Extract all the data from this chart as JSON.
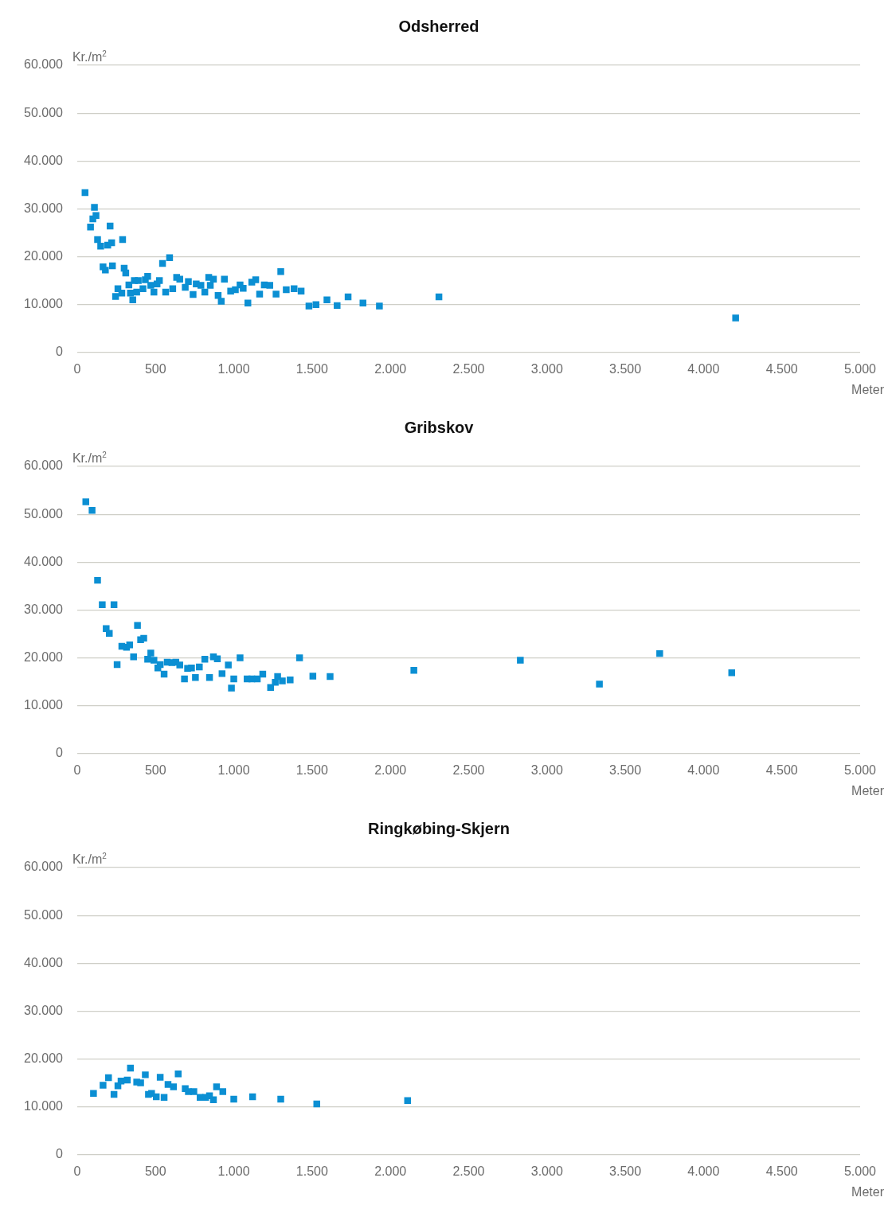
{
  "chart_data": [
    {
      "type": "scatter",
      "title": "Odsherred",
      "xlabel": "Meter",
      "ylabel": "Kr./m$^{2}$",
      "marker": "square",
      "grid": "y",
      "legend": false,
      "xlim": [
        0,
        5000
      ],
      "xticks": [
        {
          "value": 0,
          "label": "0"
        },
        {
          "value": 500,
          "label": "500"
        },
        {
          "value": 1000,
          "label": "1.000"
        },
        {
          "value": 1500,
          "label": "1.500"
        },
        {
          "value": 2000,
          "label": "2.000"
        },
        {
          "value": 2500,
          "label": "2.500"
        },
        {
          "value": 3000,
          "label": "3.000"
        },
        {
          "value": 3500,
          "label": "3.500"
        },
        {
          "value": 4000,
          "label": "4.000"
        },
        {
          "value": 4500,
          "label": "4.500"
        },
        {
          "value": 5000,
          "label": "5.000"
        }
      ],
      "ylim": [
        0,
        60000
      ],
      "yticks": [
        {
          "value": 0,
          "label": "0"
        },
        {
          "value": 10000,
          "label": "10.000"
        },
        {
          "value": 20000,
          "label": "20.000"
        },
        {
          "value": 30000,
          "label": "30.000"
        },
        {
          "value": 40000,
          "label": "40.000"
        },
        {
          "value": 50000,
          "label": "50.000"
        },
        {
          "value": 60000,
          "label": "60.000"
        }
      ],
      "series": [
        {
          "color": "#0b8fd3",
          "x": [
            50,
            85,
            100,
            110,
            120,
            130,
            150,
            165,
            180,
            195,
            210,
            220,
            225,
            245,
            260,
            285,
            290,
            300,
            310,
            330,
            340,
            355,
            365,
            380,
            390,
            420,
            435,
            450,
            470,
            490,
            510,
            525,
            545,
            565,
            590,
            610,
            635,
            655,
            690,
            710,
            740,
            760,
            790,
            815,
            840,
            850,
            870,
            900,
            920,
            940,
            980,
            1010,
            1040,
            1060,
            1090,
            1115,
            1140,
            1165,
            1195,
            1230,
            1270,
            1300,
            1335,
            1385,
            1430,
            1480,
            1525,
            1595,
            1660,
            1730,
            1825,
            1930,
            2310,
            4205
          ],
          "values": [
            33400,
            26200,
            27900,
            30300,
            28600,
            23600,
            22200,
            17900,
            17200,
            22400,
            26400,
            22900,
            18100,
            11700,
            13300,
            12400,
            23600,
            17600,
            16600,
            14100,
            12400,
            11000,
            15000,
            12600,
            15000,
            13300,
            15200,
            15900,
            14000,
            12600,
            14300,
            15000,
            18600,
            12600,
            19800,
            13300,
            15700,
            15300,
            13600,
            14800,
            12100,
            14300,
            14000,
            12600,
            15700,
            14000,
            15300,
            11900,
            10700,
            15300,
            12800,
            13100,
            14100,
            13400,
            10300,
            14700,
            15200,
            12200,
            14100,
            14000,
            12200,
            16900,
            13100,
            13300,
            12800,
            9700,
            10000,
            11000,
            9800,
            11600,
            10300,
            9700,
            11600,
            7200
          ]
        }
      ]
    },
    {
      "type": "scatter",
      "title": "Gribskov",
      "xlabel": "Meter",
      "ylabel": "Kr./m$^{2}$",
      "marker": "square",
      "grid": "y",
      "legend": false,
      "xlim": [
        0,
        5000
      ],
      "xticks": [
        {
          "value": 0,
          "label": "0"
        },
        {
          "value": 500,
          "label": "500"
        },
        {
          "value": 1000,
          "label": "1.000"
        },
        {
          "value": 1500,
          "label": "1.500"
        },
        {
          "value": 2000,
          "label": "2.000"
        },
        {
          "value": 2500,
          "label": "2.500"
        },
        {
          "value": 3000,
          "label": "3.000"
        },
        {
          "value": 3500,
          "label": "3.500"
        },
        {
          "value": 4000,
          "label": "4.000"
        },
        {
          "value": 4500,
          "label": "4.500"
        },
        {
          "value": 5000,
          "label": "5.000"
        }
      ],
      "ylim": [
        0,
        60000
      ],
      "yticks": [
        {
          "value": 0,
          "label": "0"
        },
        {
          "value": 10000,
          "label": "10.000"
        },
        {
          "value": 20000,
          "label": "20.000"
        },
        {
          "value": 30000,
          "label": "30.000"
        },
        {
          "value": 40000,
          "label": "40.000"
        },
        {
          "value": 50000,
          "label": "50.000"
        },
        {
          "value": 60000,
          "label": "60.000"
        }
      ],
      "series": [
        {
          "color": "#0b8fd3",
          "x": [
            55,
            95,
            130,
            160,
            185,
            205,
            235,
            255,
            285,
            315,
            335,
            360,
            385,
            405,
            425,
            450,
            470,
            490,
            515,
            530,
            555,
            575,
            605,
            630,
            655,
            685,
            705,
            730,
            755,
            780,
            815,
            845,
            870,
            895,
            925,
            965,
            985,
            1000,
            1040,
            1085,
            1115,
            1150,
            1185,
            1235,
            1265,
            1280,
            1310,
            1360,
            1420,
            1505,
            1615,
            2150,
            2830,
            3335,
            3720,
            4180
          ],
          "values": [
            52600,
            50800,
            36200,
            31100,
            26100,
            25100,
            31100,
            18600,
            22400,
            22200,
            22700,
            20200,
            26800,
            23800,
            24100,
            19700,
            21000,
            19500,
            17900,
            18600,
            16600,
            19100,
            19000,
            19100,
            18500,
            15600,
            17800,
            17900,
            15900,
            18100,
            19700,
            15900,
            20200,
            19800,
            16700,
            18500,
            13700,
            15600,
            20000,
            15600,
            15600,
            15600,
            16600,
            13800,
            14900,
            16100,
            15200,
            15400,
            20000,
            16200,
            16100,
            17400,
            19500,
            14500,
            20900,
            16900
          ]
        }
      ]
    },
    {
      "type": "scatter",
      "title": "Ringkøbing-Skjern",
      "xlabel": "Meter",
      "ylabel": "Kr./m$^{2}$",
      "marker": "square",
      "grid": "y",
      "legend": false,
      "xlim": [
        0,
        5000
      ],
      "xticks": [
        {
          "value": 0,
          "label": "0"
        },
        {
          "value": 500,
          "label": "500"
        },
        {
          "value": 1000,
          "label": "1.000"
        },
        {
          "value": 1500,
          "label": "1.500"
        },
        {
          "value": 2000,
          "label": "2.000"
        },
        {
          "value": 2500,
          "label": "2.500"
        },
        {
          "value": 3000,
          "label": "3.000"
        },
        {
          "value": 3500,
          "label": "3.500"
        },
        {
          "value": 4000,
          "label": "4.000"
        },
        {
          "value": 4500,
          "label": "4.500"
        },
        {
          "value": 5000,
          "label": "5.000"
        }
      ],
      "ylim": [
        0,
        60000
      ],
      "yticks": [
        {
          "value": 0,
          "label": "0"
        },
        {
          "value": 10000,
          "label": "10.000"
        },
        {
          "value": 20000,
          "label": "20.000"
        },
        {
          "value": 30000,
          "label": "30.000"
        },
        {
          "value": 40000,
          "label": "40.000"
        },
        {
          "value": 50000,
          "label": "50.000"
        },
        {
          "value": 60000,
          "label": "60.000"
        }
      ],
      "series": [
        {
          "color": "#0b8fd3",
          "x": [
            104,
            165,
            200,
            235,
            260,
            280,
            320,
            340,
            380,
            405,
            435,
            455,
            475,
            505,
            530,
            555,
            580,
            615,
            645,
            690,
            710,
            745,
            785,
            820,
            845,
            870,
            890,
            930,
            1000,
            1120,
            1300,
            1530,
            2110
          ],
          "values": [
            12800,
            14500,
            16100,
            12600,
            14400,
            15400,
            15600,
            18100,
            15200,
            15000,
            16700,
            12600,
            12800,
            12100,
            16200,
            12000,
            14700,
            14200,
            16900,
            13800,
            13200,
            13200,
            12000,
            12000,
            12300,
            11500,
            14200,
            13200,
            11600,
            12100,
            11600,
            10600,
            11300
          ]
        }
      ]
    }
  ]
}
